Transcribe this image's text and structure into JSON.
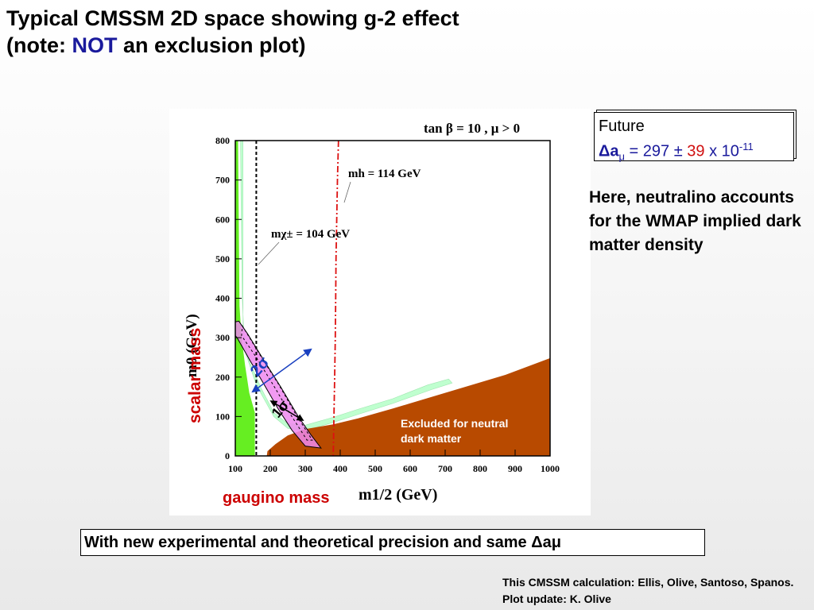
{
  "slide": {
    "title_line1": "Typical CMSSM 2D space showing g-2 effect",
    "title_line2_prefix": "(note: ",
    "title_line2_highlight": "NOT",
    "title_line2_suffix": " an exclusion plot)",
    "future_label": "Future",
    "future_delta_a": "Δa",
    "future_mu_sub": "μ",
    "future_eq": " = 297 ",
    "future_pm": "±",
    "future_err": " 39",
    "future_times": " x 10",
    "future_exp": "-11",
    "note_text": "Here, neutralino accounts for the WMAP implied dark matter density",
    "bottom_text": "With new experimental and theoretical precision and same Δaμ",
    "credit_text": "This CMSSM calculation: Ellis, Olive, Santoso, Spanos.  Plot update: K. Olive"
  },
  "chart_data": {
    "type": "scatter",
    "title": "tan β = 10 ,  μ > 0",
    "xlabel": "m1/2 (GeV)",
    "ylabel": "m0 (GeV)",
    "xlabel_overlay": "gaugino mass",
    "ylabel_overlay": "scalar mass",
    "xlim": [
      100,
      1000
    ],
    "ylim": [
      0,
      800
    ],
    "xticks": [
      100,
      200,
      300,
      400,
      500,
      600,
      700,
      800,
      900,
      1000
    ],
    "yticks": [
      0,
      100,
      200,
      300,
      400,
      500,
      600,
      700,
      800
    ],
    "chargino_line": {
      "label": "mχ± = 104 GeV",
      "x": 160
    },
    "higgs_line": {
      "label": "mh = 114 GeV",
      "points": [
        [
          395,
          800
        ],
        [
          392,
          700
        ],
        [
          390,
          600
        ],
        [
          388,
          500
        ],
        [
          387,
          400
        ],
        [
          386,
          300
        ],
        [
          384,
          200
        ],
        [
          382,
          100
        ],
        [
          380,
          0
        ]
      ]
    },
    "excluded_region": {
      "label": "Excluded for neutral dark matter",
      "color": "#b84a00",
      "polygon": [
        [
          190,
          0
        ],
        [
          1000,
          0
        ],
        [
          1000,
          248
        ],
        [
          870,
          205
        ],
        [
          700,
          160
        ],
        [
          550,
          120
        ],
        [
          450,
          95
        ],
        [
          380,
          80
        ],
        [
          300,
          68
        ],
        [
          250,
          52
        ],
        [
          215,
          30
        ],
        [
          192,
          12
        ]
      ]
    },
    "wmap_strip": {
      "color": "#bfffcf",
      "polygon": [
        [
          115,
          800
        ],
        [
          122,
          800
        ],
        [
          122,
          330
        ],
        [
          130,
          260
        ],
        [
          160,
          180
        ],
        [
          210,
          100
        ],
        [
          250,
          70
        ],
        [
          300,
          64
        ],
        [
          380,
          85
        ],
        [
          450,
          105
        ],
        [
          550,
          133
        ],
        [
          660,
          168
        ],
        [
          720,
          185
        ],
        [
          710,
          195
        ],
        [
          650,
          180
        ],
        [
          550,
          145
        ],
        [
          450,
          118
        ],
        [
          380,
          98
        ],
        [
          300,
          78
        ],
        [
          250,
          82
        ],
        [
          210,
          110
        ],
        [
          175,
          170
        ],
        [
          140,
          240
        ],
        [
          125,
          300
        ],
        [
          120,
          400
        ],
        [
          117,
          600
        ]
      ]
    },
    "lep_excluded": {
      "color": "#66ee22",
      "polygon": [
        [
          100,
          0
        ],
        [
          156,
          0
        ],
        [
          156,
          110
        ],
        [
          140,
          160
        ],
        [
          128,
          230
        ],
        [
          118,
          300
        ],
        [
          112,
          380
        ],
        [
          108,
          800
        ],
        [
          100,
          800
        ]
      ]
    },
    "g2_band_2sigma": {
      "label": "2σ",
      "color": "#ee88ee",
      "polygon": [
        [
          100,
          340
        ],
        [
          110,
          342
        ],
        [
          135,
          310
        ],
        [
          180,
          245
        ],
        [
          230,
          175
        ],
        [
          280,
          100
        ],
        [
          315,
          55
        ],
        [
          345,
          20
        ],
        [
          300,
          25
        ],
        [
          262,
          65
        ],
        [
          222,
          120
        ],
        [
          180,
          185
        ],
        [
          140,
          245
        ],
        [
          105,
          300
        ],
        [
          100,
          305
        ]
      ]
    },
    "g2_band_1sigma": {
      "label": "1σ",
      "color": "#000000",
      "polygon": [
        [
          120,
          330
        ],
        [
          175,
          250
        ],
        [
          225,
          180
        ],
        [
          270,
          110
        ],
        [
          320,
          40
        ],
        [
          305,
          40
        ],
        [
          258,
          105
        ],
        [
          212,
          175
        ],
        [
          160,
          250
        ],
        [
          118,
          305
        ]
      ]
    }
  }
}
